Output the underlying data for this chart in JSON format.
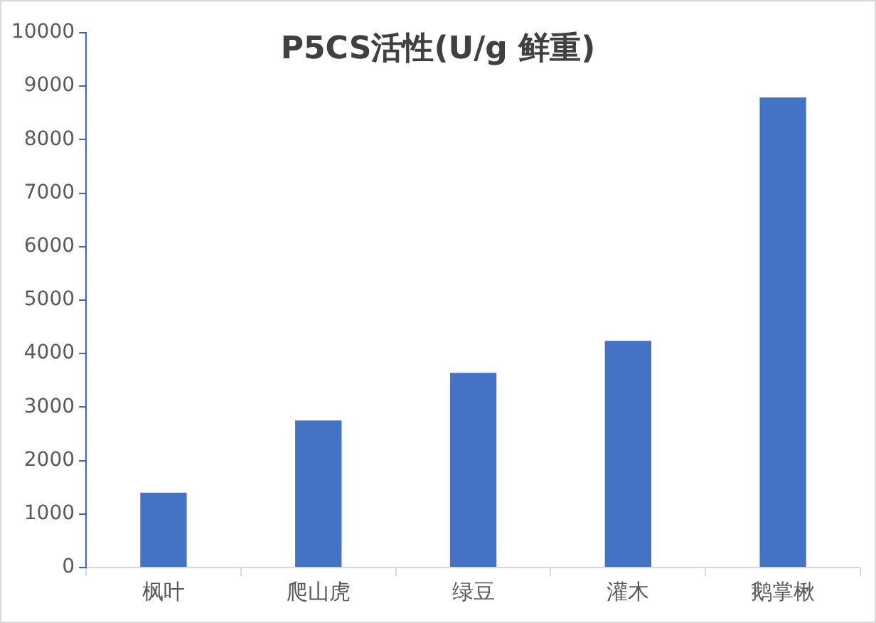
{
  "chart_data": {
    "type": "bar",
    "title": "P5CS活性(U/g 鲜重)",
    "categories": [
      "枫叶",
      "爬山虎",
      "绿豆",
      "灌木",
      "鹅掌楸"
    ],
    "values": [
      1400,
      2750,
      3640,
      4240,
      8790
    ],
    "color": "#4472c4",
    "ylim": [
      0,
      10000
    ],
    "yticks": [
      0,
      1000,
      2000,
      3000,
      4000,
      5000,
      6000,
      7000,
      8000,
      9000,
      10000
    ],
    "grid": false,
    "legend": false
  }
}
